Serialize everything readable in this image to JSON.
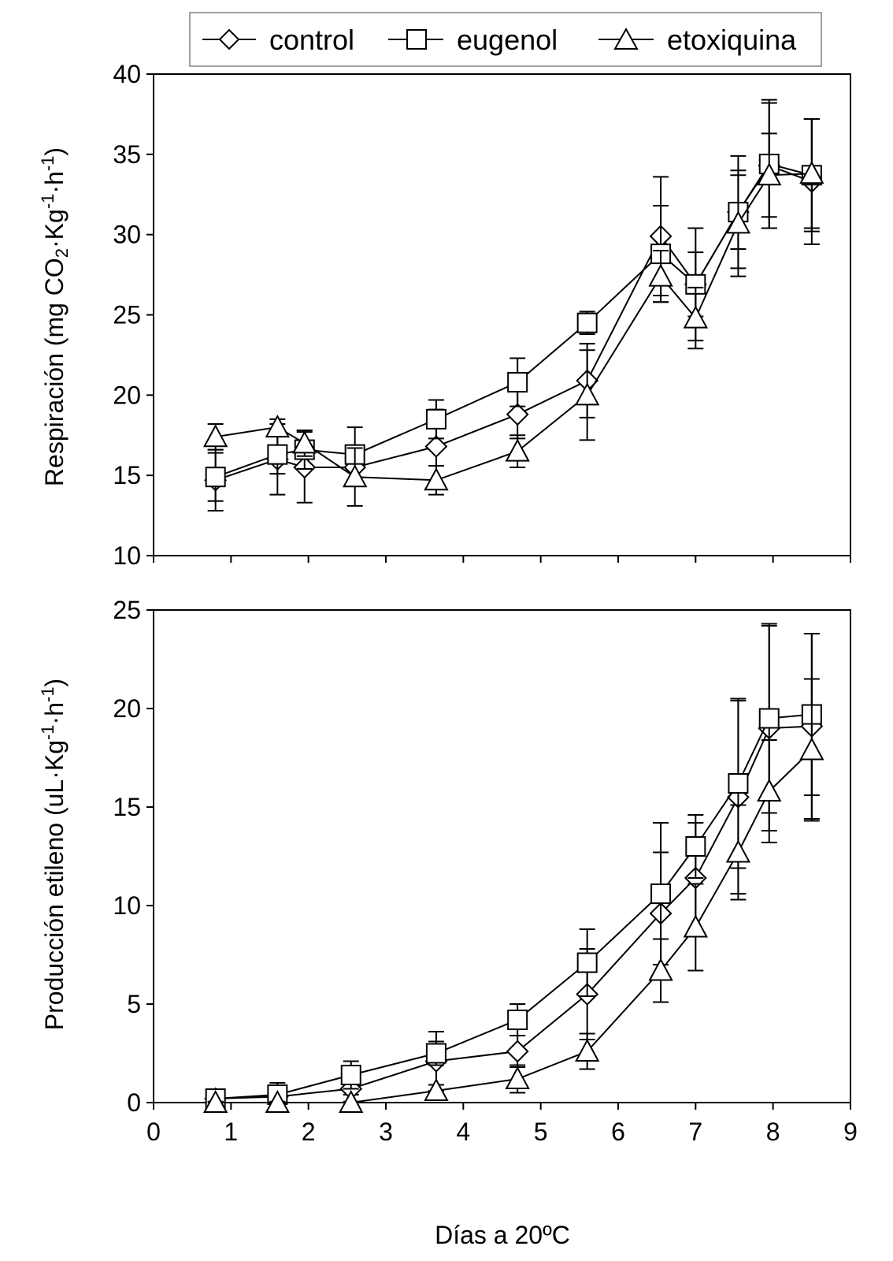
{
  "legend": {
    "entries": [
      {
        "name": "control",
        "marker": "diamond"
      },
      {
        "name": "eugenol",
        "marker": "square"
      },
      {
        "name": "etoxiquina",
        "marker": "triangle"
      }
    ]
  },
  "x_axis": {
    "title": "Días a 20ºC",
    "range": [
      0,
      9
    ],
    "ticks": [
      "0",
      "1",
      "2",
      "3",
      "4",
      "5",
      "6",
      "7",
      "8",
      "9"
    ]
  },
  "chart_data": [
    {
      "type": "line",
      "id": "respiracion",
      "title": "",
      "xlabel": "",
      "ylabel": {
        "prefix": "Respiración (mg CO",
        "sub": "2",
        "middle": "·Kg",
        "sup1": "-1",
        "dot": "·h",
        "sup2": "-1",
        "suffix": ")"
      },
      "ylim": [
        10,
        40
      ],
      "yticks": [
        "10",
        "15",
        "20",
        "25",
        "30",
        "35",
        "40"
      ],
      "series": [
        {
          "name": "control",
          "marker": "diamond",
          "x": [
            0.8,
            1.6,
            1.95,
            2.6,
            3.65,
            4.7,
            5.6,
            6.55,
            7.0,
            7.55,
            7.95,
            8.5
          ],
          "y": [
            14.7,
            16.0,
            15.5,
            15.5,
            16.8,
            18.8,
            20.9,
            29.9,
            26.9,
            31.4,
            34.3,
            33.3
          ],
          "err": [
            1.9,
            2.2,
            2.2,
            1.0,
            2.3,
            1.5,
            2.3,
            3.7,
            2.0,
            2.3,
            3.9,
            3.9
          ]
        },
        {
          "name": "eugenol",
          "marker": "square",
          "x": [
            0.8,
            1.6,
            1.95,
            2.6,
            3.65,
            4.7,
            5.6,
            6.55,
            7.0,
            7.55,
            7.95,
            8.5
          ],
          "y": [
            14.9,
            16.3,
            16.6,
            16.3,
            18.5,
            20.8,
            24.5,
            28.8,
            26.9,
            31.4,
            34.4,
            33.7
          ],
          "err": [
            1.5,
            1.2,
            1.2,
            1.7,
            1.2,
            1.5,
            0.7,
            3.0,
            3.5,
            3.5,
            4.0,
            3.5
          ]
        },
        {
          "name": "etoxiquina",
          "marker": "triangle",
          "x": [
            0.8,
            1.6,
            1.95,
            2.6,
            3.65,
            4.7,
            5.6,
            6.55,
            7.0,
            7.55,
            7.95,
            8.5
          ],
          "y": [
            17.4,
            18.0,
            17.0,
            14.9,
            14.7,
            16.5,
            20.0,
            27.4,
            24.8,
            30.7,
            33.7,
            33.8
          ],
          "err": [
            0.8,
            0.5,
            0.8,
            1.8,
            0.9,
            1.0,
            2.8,
            1.6,
            1.9,
            3.3,
            2.6,
            3.4
          ]
        }
      ]
    },
    {
      "type": "line",
      "id": "etileno",
      "title": "",
      "xlabel": "Días a 20ºC",
      "ylabel": {
        "prefix": "Producción etileno (uL·Kg",
        "sup1": "-1",
        "dot": "·h",
        "sup2": "-1",
        "suffix": ")"
      },
      "ylim": [
        0,
        25
      ],
      "yticks": [
        "0",
        "5",
        "10",
        "15",
        "20",
        "25"
      ],
      "series": [
        {
          "name": "control",
          "marker": "diamond",
          "x": [
            0.8,
            1.6,
            2.55,
            3.65,
            4.7,
            5.6,
            6.55,
            7.0,
            7.55,
            7.95,
            8.5
          ],
          "y": [
            0.2,
            0.3,
            0.7,
            2.1,
            2.6,
            5.5,
            9.6,
            11.4,
            15.5,
            19.0,
            19.1
          ],
          "err": [
            0.1,
            0.2,
            0.3,
            1.5,
            0.8,
            2.3,
            3.1,
            2.8,
            4.9,
            5.2,
            4.7
          ]
        },
        {
          "name": "eugenol",
          "marker": "square",
          "x": [
            0.8,
            1.6,
            2.55,
            3.65,
            4.7,
            5.6,
            6.55,
            7.0,
            7.55,
            7.95,
            8.5
          ],
          "y": [
            0.2,
            0.4,
            1.4,
            2.5,
            4.2,
            7.1,
            10.6,
            13.0,
            16.2,
            19.5,
            19.7
          ],
          "err": [
            0.1,
            0.6,
            0.7,
            0.6,
            0.8,
            1.7,
            3.6,
            1.6,
            4.3,
            4.8,
            4.1
          ]
        },
        {
          "name": "etoxiquina",
          "marker": "triangle",
          "x": [
            0.8,
            1.6,
            2.55,
            3.65,
            4.7,
            5.6,
            6.55,
            7.0,
            7.55,
            7.95,
            8.5
          ],
          "y": [
            0.0,
            0.0,
            0.0,
            0.6,
            1.2,
            2.6,
            6.7,
            8.9,
            12.7,
            15.8,
            17.9
          ],
          "err": [
            0.05,
            0.05,
            0.05,
            0.3,
            0.7,
            0.9,
            1.6,
            2.2,
            2.4,
            2.6,
            3.6
          ]
        }
      ]
    }
  ]
}
